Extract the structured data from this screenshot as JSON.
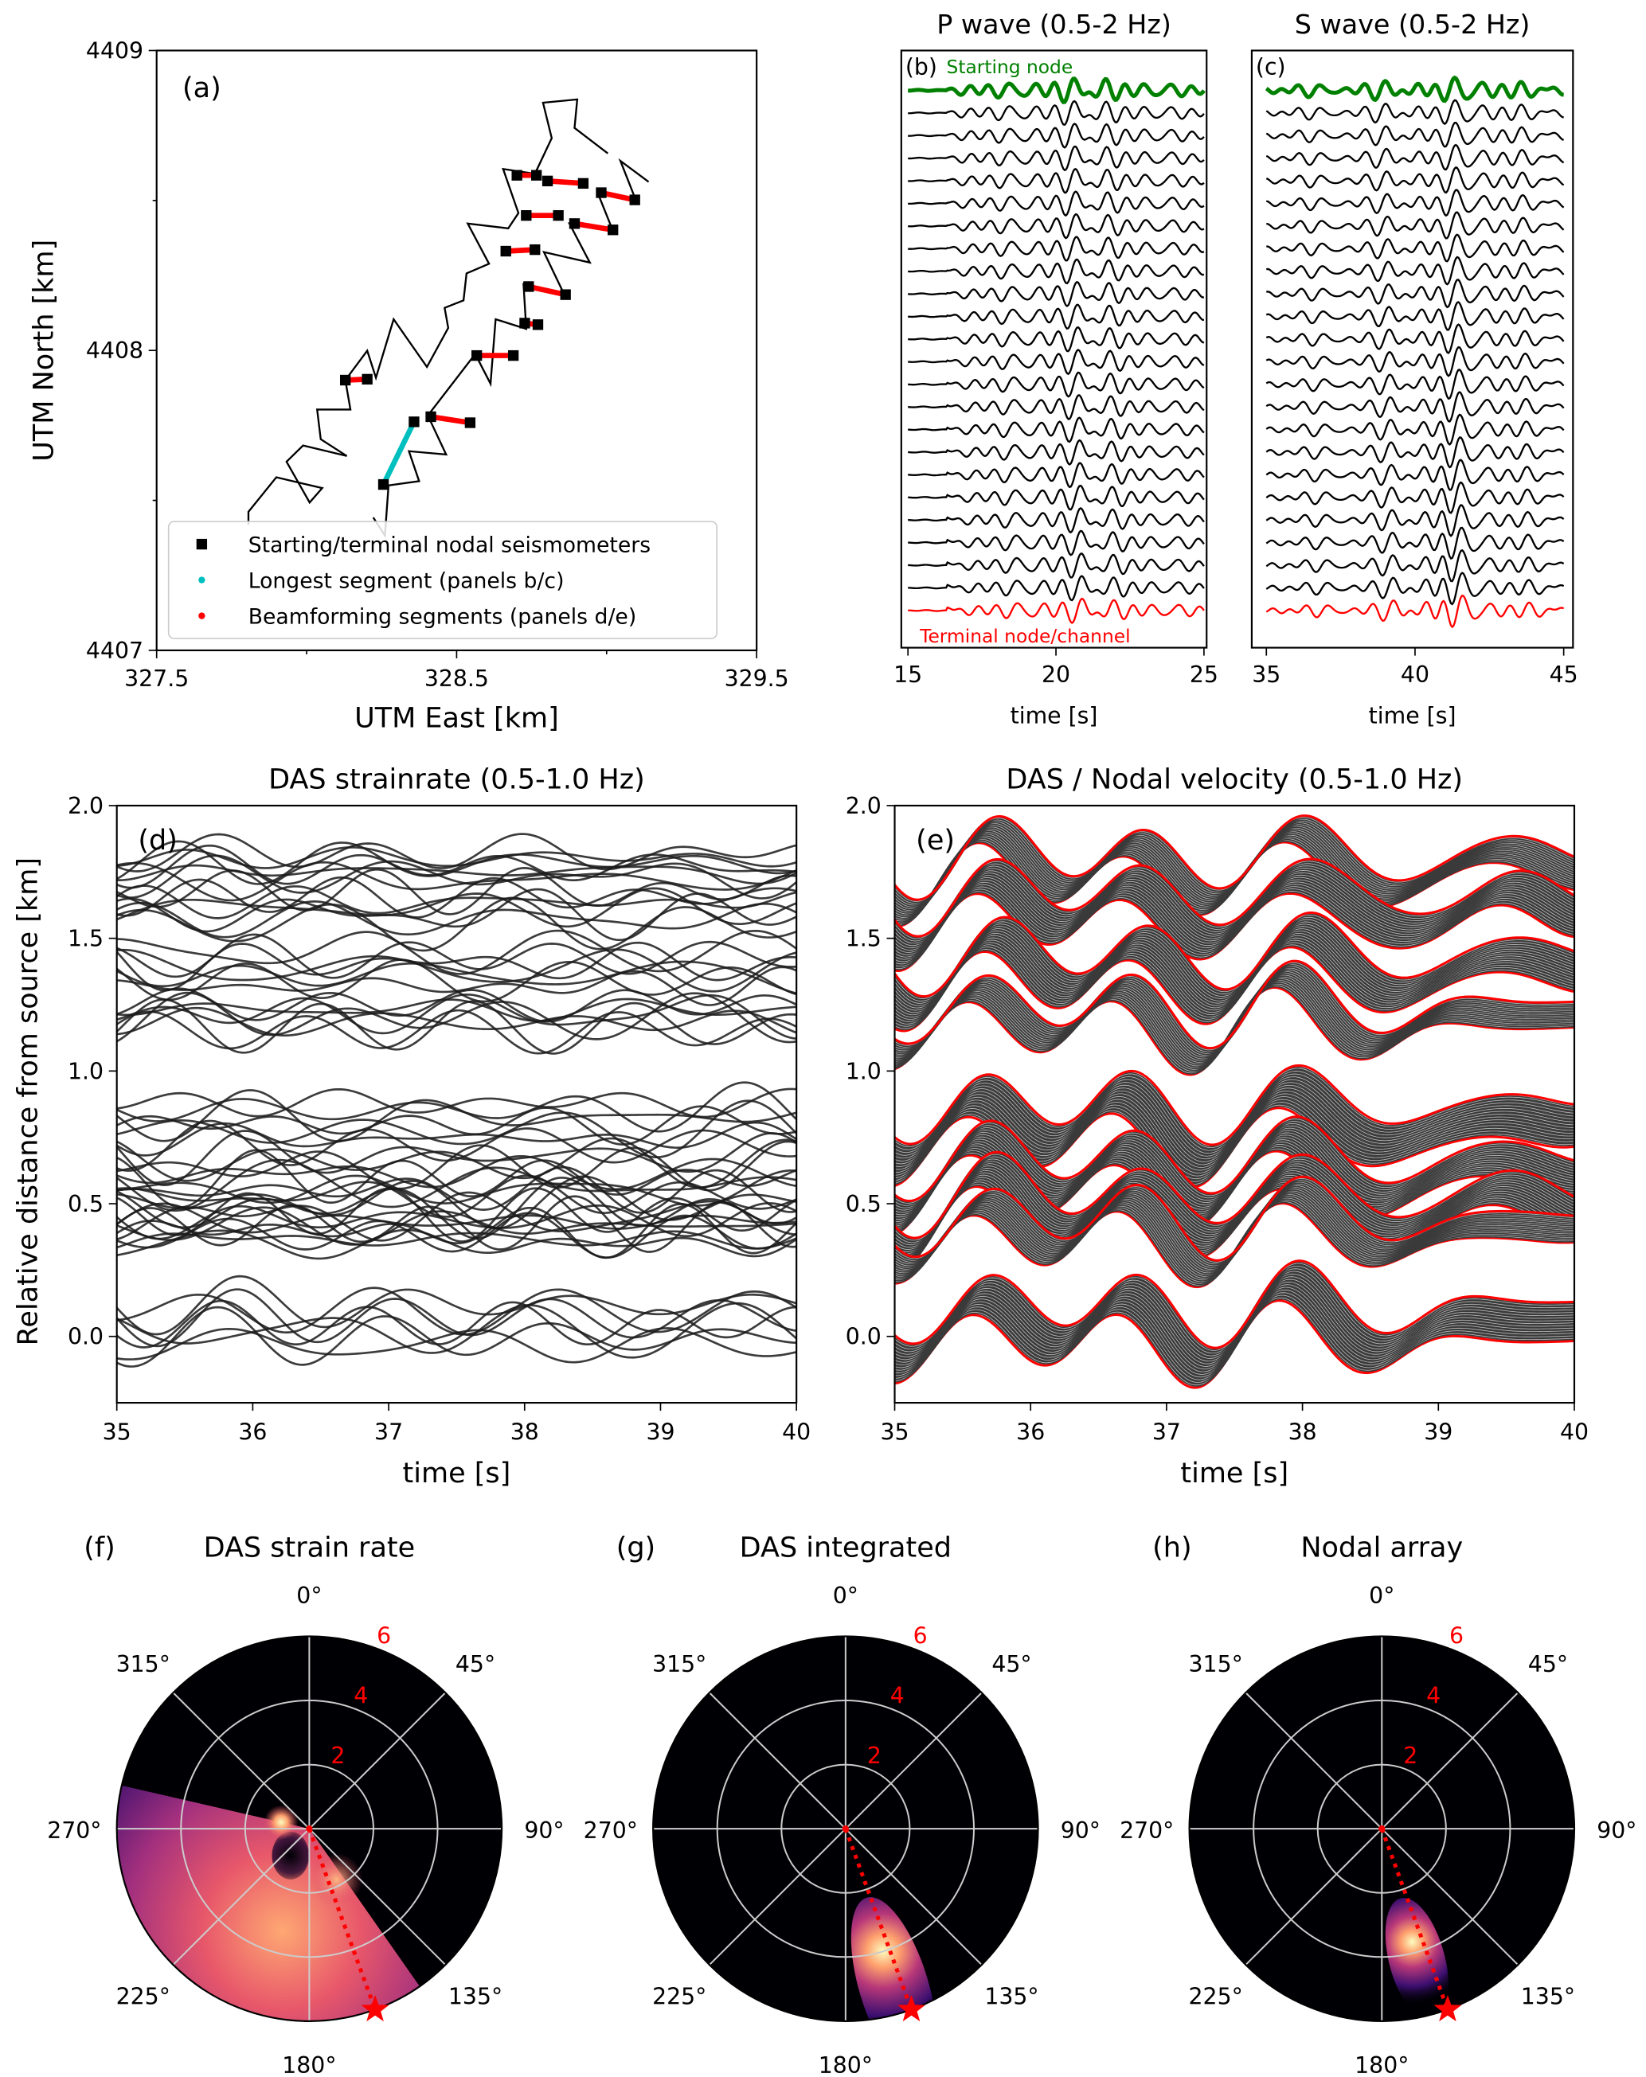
{
  "colors": {
    "cable": "#000000",
    "longest": "#00bfbf",
    "beam": "#ff0000",
    "start": "#008000",
    "terminal": "#ff0000",
    "trace": "#000000",
    "grid": "#cccccc",
    "radial_label": "#ff0000",
    "star": "#ff0000"
  },
  "panel_a": {
    "letter": "(a)",
    "xlabel": "UTM East [km]",
    "ylabel": "UTM North [km]",
    "xlim": [
      327.5,
      329.5
    ],
    "ylim": [
      4407,
      4409
    ],
    "xticks": [
      "327.5",
      "328.5",
      "329.5"
    ],
    "yticks": [
      "4409",
      "4408",
      "4407"
    ],
    "legend": [
      {
        "label": "Starting/terminal nodal seismometers",
        "marker": "square",
        "color": "#000000"
      },
      {
        "label": "Longest segment (panels b/c)",
        "marker": "dot",
        "color": "#00bfbf"
      },
      {
        "label": "Beamforming segments (panels d/e)",
        "marker": "dot",
        "color": "#ff0000"
      }
    ],
    "cable_lines": [
      [
        [
          327.806,
          4407.419
        ],
        [
          327.806,
          4407.462
        ],
        [
          327.899,
          4407.577
        ],
        [
          328.052,
          4407.541
        ],
        [
          328.01,
          4407.493
        ],
        [
          327.933,
          4407.629
        ],
        [
          327.988,
          4407.683
        ],
        [
          328.134,
          4407.648
        ],
        [
          328.047,
          4407.704
        ],
        [
          328.035,
          4407.803
        ],
        [
          328.146,
          4407.803
        ],
        [
          328.129,
          4407.901
        ],
        [
          328.202,
          4407.999
        ],
        [
          328.231,
          4407.909
        ],
        [
          328.29,
          4408.104
        ],
        [
          328.401,
          4407.945
        ],
        [
          328.472,
          4408.075
        ],
        [
          328.46,
          4408.142
        ],
        [
          328.523,
          4408.167
        ],
        [
          328.533,
          4408.257
        ],
        [
          328.608,
          4408.289
        ],
        [
          328.537,
          4408.423
        ],
        [
          328.672,
          4408.407
        ],
        [
          328.706,
          4408.458
        ],
        [
          328.655,
          4408.605
        ],
        [
          328.761,
          4408.589
        ],
        [
          328.817,
          4408.708
        ],
        [
          328.788,
          4408.826
        ],
        [
          328.902,
          4408.837
        ],
        [
          328.893,
          4408.742
        ],
        [
          329.004,
          4408.657
        ]
      ],
      [
        [
          328.222,
          4407.443
        ],
        [
          328.261,
          4407.383
        ],
        [
          328.273,
          4407.55
        ],
        [
          328.375,
          4407.564
        ],
        [
          328.341,
          4407.664
        ],
        [
          328.465,
          4407.653
        ],
        [
          328.404,
          4407.783
        ],
        [
          328.562,
          4407.988
        ],
        [
          328.613,
          4407.889
        ],
        [
          328.63,
          4408.104
        ],
        [
          328.732,
          4408.072
        ],
        [
          328.723,
          4408.221
        ],
        [
          328.859,
          4408.186
        ],
        [
          328.791,
          4408.328
        ],
        [
          328.944,
          4408.293
        ],
        [
          328.876,
          4408.423
        ],
        [
          329.021,
          4408.399
        ],
        [
          328.97,
          4408.526
        ],
        [
          329.097,
          4408.502
        ],
        [
          329.046,
          4408.632
        ],
        [
          329.14,
          4408.562
        ]
      ]
    ],
    "longest_segment": [
      [
        328.256,
        4407.553
      ],
      [
        328.358,
        4407.762
      ]
    ],
    "beamforming_segments": [
      [
        [
          328.129,
          4407.901
        ],
        [
          328.202,
          4407.904
        ]
      ],
      [
        [
          328.414,
          4407.779
        ],
        [
          328.545,
          4407.759
        ]
      ],
      [
        [
          328.567,
          4407.983
        ],
        [
          328.689,
          4407.983
        ]
      ],
      [
        [
          328.727,
          4408.091
        ],
        [
          328.771,
          4408.086
        ]
      ],
      [
        [
          328.74,
          4408.213
        ],
        [
          328.863,
          4408.186
        ]
      ],
      [
        [
          328.664,
          4408.331
        ],
        [
          328.761,
          4408.336
        ]
      ],
      [
        [
          328.732,
          4408.45
        ],
        [
          328.839,
          4408.45
        ]
      ],
      [
        [
          328.893,
          4408.423
        ],
        [
          329.021,
          4408.402
        ]
      ],
      [
        [
          328.701,
          4408.584
        ],
        [
          328.766,
          4408.584
        ]
      ],
      [
        [
          328.803,
          4408.565
        ],
        [
          328.922,
          4408.557
        ]
      ],
      [
        [
          328.982,
          4408.526
        ],
        [
          329.094,
          4408.502
        ]
      ]
    ]
  },
  "panel_b": {
    "title": "P wave (0.5-2 Hz)",
    "letter": "(b)",
    "start_label": "Starting node",
    "end_label": "Terminal node/channel",
    "xlabel": "time [s]",
    "xlim": [
      15,
      25
    ],
    "xticks": [
      "15",
      "20",
      "25"
    ],
    "n_traces": 24
  },
  "panel_c": {
    "title": "S wave (0.5-2 Hz)",
    "letter": "(c)",
    "xlabel": "time [s]",
    "xlim": [
      35,
      45
    ],
    "xticks": [
      "35",
      "40",
      "45"
    ],
    "n_traces": 24
  },
  "panel_d": {
    "title": "DAS strainrate (0.5-1.0 Hz)",
    "letter": "(d)",
    "xlabel": "time [s]",
    "ylabel": "Relative distance from source [km]",
    "xlim": [
      35,
      40
    ],
    "ylim": [
      -0.25,
      2.0
    ],
    "xticks": [
      "35",
      "36",
      "37",
      "38",
      "39",
      "40"
    ],
    "yticks": [
      "0.0",
      "0.5",
      "1.0",
      "1.5",
      "2.0"
    ]
  },
  "panel_e": {
    "title": "DAS / Nodal velocity (0.5-1.0 Hz)",
    "letter": "(e)",
    "xlabel": "time [s]",
    "xlim": [
      35,
      40
    ],
    "ylim": [
      -0.25,
      2.0
    ],
    "xticks": [
      "35",
      "36",
      "37",
      "38",
      "39",
      "40"
    ],
    "yticks": [
      "0.0",
      "0.5",
      "1.0",
      "1.5",
      "2.0"
    ]
  },
  "segment_distance_ranges_km": [
    [
      1.72,
      1.82
    ],
    [
      1.55,
      1.68
    ],
    [
      1.32,
      1.45
    ],
    [
      1.15,
      1.25
    ],
    [
      0.72,
      0.88
    ],
    [
      0.55,
      0.68
    ],
    [
      0.42,
      0.55
    ],
    [
      0.35,
      0.45
    ],
    [
      -0.03,
      0.12
    ]
  ],
  "polar": {
    "angle_labels": [
      "0°",
      "45°",
      "90°",
      "135°",
      "180°",
      "225°",
      "270°",
      "315°"
    ],
    "radial_labels": [
      "2",
      "4",
      "6"
    ],
    "rmax": 6,
    "source_azimuth_deg": 160,
    "panels": [
      {
        "letter": "(f)",
        "title": "DAS strain rate",
        "peak_azimuth_deg": 195,
        "peak_radius": 3.3
      },
      {
        "letter": "(g)",
        "title": "DAS integrated",
        "peak_azimuth_deg": 163,
        "peak_radius": 4.4
      },
      {
        "letter": "(h)",
        "title": "Nodal array",
        "peak_azimuth_deg": 165,
        "peak_radius": 3.9
      }
    ]
  }
}
